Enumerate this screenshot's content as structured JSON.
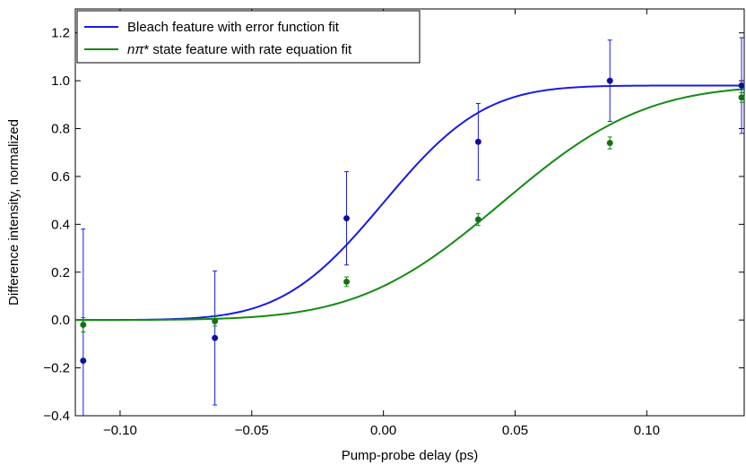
{
  "chart_data": {
    "type": "scatter",
    "title": "",
    "xlabel": "Pump-probe delay (ps)",
    "ylabel": "Difference intensity, normalized",
    "xlim": [
      -0.117,
      0.137
    ],
    "ylim": [
      -0.4,
      1.3
    ],
    "x_ticks": [
      -0.1,
      -0.05,
      0.0,
      0.05,
      0.1
    ],
    "x_tick_labels": [
      "−0.10",
      "−0.05",
      "0.00",
      "0.05",
      "0.10"
    ],
    "y_ticks": [
      -0.4,
      -0.2,
      0.0,
      0.2,
      0.4,
      0.6,
      0.8,
      1.0,
      1.2
    ],
    "y_tick_labels": [
      "−0.4",
      "−0.2",
      "0.0",
      "0.2",
      "0.4",
      "0.6",
      "0.8",
      "1.0",
      "1.2"
    ],
    "grid": false,
    "legend_position": "top-left",
    "series": [
      {
        "name": "Bleach feature with error function fit",
        "name_prefix": "",
        "name_italic": "",
        "name_rest": "Bleach feature with error function fit",
        "color": "#1a1ae6",
        "marker_color": "#101088",
        "fit": "erf",
        "points": [
          {
            "x": -0.114,
            "y": -0.17,
            "err": 0.55
          },
          {
            "x": -0.064,
            "y": -0.075,
            "err": 0.28
          },
          {
            "x": -0.014,
            "y": 0.425,
            "err": 0.195
          },
          {
            "x": 0.036,
            "y": 0.745,
            "err": 0.16
          },
          {
            "x": 0.086,
            "y": 1.0,
            "err": 0.17
          },
          {
            "x": 0.136,
            "y": 0.98,
            "err": 0.2
          }
        ]
      },
      {
        "name": "nπ* state feature with rate equation fit",
        "name_prefix": "",
        "name_italic": "nπ",
        "name_rest": "* state feature with rate equation fit",
        "color": "#138a13",
        "marker_color": "#1a6b1a",
        "fit": "rate",
        "points": [
          {
            "x": -0.114,
            "y": -0.02,
            "err": 0.03
          },
          {
            "x": -0.064,
            "y": -0.005,
            "err": 0.02
          },
          {
            "x": -0.014,
            "y": 0.16,
            "err": 0.02
          },
          {
            "x": 0.036,
            "y": 0.42,
            "err": 0.025
          },
          {
            "x": 0.086,
            "y": 0.74,
            "err": 0.025
          },
          {
            "x": 0.136,
            "y": 0.93,
            "err": 0.02
          }
        ]
      }
    ]
  }
}
